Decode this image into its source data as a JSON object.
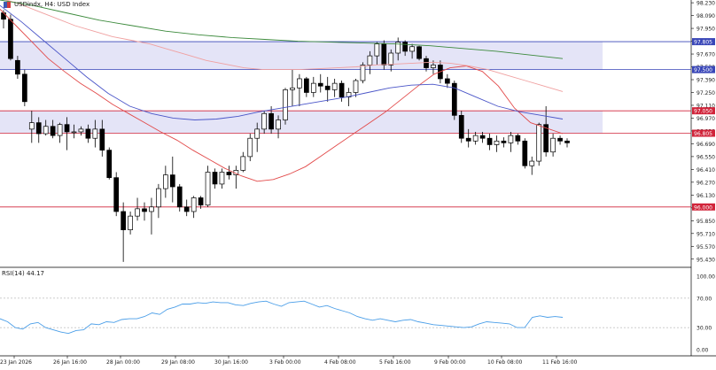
{
  "symbol": {
    "name": "USDindx, H4:  USD Index"
  },
  "price_axis": {
    "labels": [
      "98.230",
      "98.090",
      "97.950",
      "97.810",
      "97.670",
      "97.530",
      "97.390",
      "97.250",
      "97.110",
      "96.970",
      "96.830",
      "96.690",
      "96.550",
      "96.410",
      "96.270",
      "96.130",
      "95.990",
      "95.850",
      "95.710",
      "95.570",
      "95.430"
    ]
  },
  "levels": [
    {
      "value": "97.805",
      "color": "#3a47b8"
    },
    {
      "value": "97.500",
      "color": "#3a47b8"
    },
    {
      "value": "97.050",
      "color": "#d1243a"
    },
    {
      "value": "96.805",
      "color": "#d1243a"
    },
    {
      "value": "96.000",
      "color": "#d1243a"
    }
  ],
  "zones": [
    {
      "from": 97.5,
      "to": 97.805,
      "color": "#e4e4f7"
    },
    {
      "from": 96.805,
      "to": 97.05,
      "color": "#e4e4f7"
    }
  ],
  "time_axis": {
    "labels": [
      "23 Jan 2026",
      "26 Jan 16:00",
      "28 Jan 00:00",
      "29 Jan 08:00",
      "30 Jan 16:00",
      "3 Feb 00:00",
      "4 Feb 08:00",
      "5 Feb 16:00",
      "9 Feb 00:00",
      "10 Feb 08:00",
      "11 Feb 16:00"
    ]
  },
  "rsi": {
    "label": "RSI(14) 44.17",
    "axis_labels": [
      "100.00",
      "70.00",
      "30.00",
      "0.00"
    ],
    "color": "#4a9ee8"
  },
  "chart_data": {
    "type": "candlestick",
    "timeframe": "H4",
    "ylim": [
      95.36,
      98.26
    ],
    "series": [
      {
        "kind": "candles",
        "values": [
          [
            98.12,
            98.15,
            97.95,
            98.05
          ],
          [
            98.05,
            98.1,
            97.6,
            97.62
          ],
          [
            97.6,
            97.65,
            97.4,
            97.45
          ],
          [
            97.45,
            97.5,
            97.1,
            97.15
          ],
          [
            96.85,
            97.05,
            96.7,
            96.92
          ],
          [
            96.92,
            96.98,
            96.7,
            96.8
          ],
          [
            96.8,
            96.95,
            96.78,
            96.88
          ],
          [
            96.88,
            96.95,
            96.75,
            96.78
          ],
          [
            96.78,
            96.92,
            96.7,
            96.9
          ],
          [
            96.9,
            96.98,
            96.62,
            96.82
          ],
          [
            96.82,
            96.9,
            96.75,
            96.82
          ],
          [
            96.82,
            96.88,
            96.78,
            96.85
          ],
          [
            96.85,
            96.9,
            96.7,
            96.75
          ],
          [
            96.75,
            96.95,
            96.65,
            96.85
          ],
          [
            96.85,
            96.95,
            96.55,
            96.62
          ],
          [
            96.62,
            96.65,
            96.3,
            96.32
          ],
          [
            96.32,
            96.38,
            95.9,
            95.95
          ],
          [
            95.95,
            96.05,
            95.4,
            95.75
          ],
          [
            95.75,
            95.95,
            95.7,
            95.9
          ],
          [
            95.9,
            96.1,
            95.85,
            95.98
          ],
          [
            95.98,
            96.05,
            95.85,
            95.95
          ],
          [
            95.95,
            96.1,
            95.7,
            96.0
          ],
          [
            96.0,
            96.25,
            95.88,
            96.2
          ],
          [
            96.2,
            96.45,
            96.1,
            96.35
          ],
          [
            96.35,
            96.55,
            96.05,
            96.22
          ],
          [
            96.22,
            96.25,
            95.95,
            96.0
          ],
          [
            96.0,
            96.08,
            95.9,
            95.95
          ],
          [
            95.95,
            96.12,
            95.88,
            96.1
          ],
          [
            96.1,
            96.12,
            95.98,
            96.02
          ],
          [
            96.02,
            96.45,
            96.0,
            96.38
          ],
          [
            96.38,
            96.42,
            96.2,
            96.25
          ],
          [
            96.25,
            96.42,
            96.2,
            96.38
          ],
          [
            96.38,
            96.45,
            96.3,
            96.35
          ],
          [
            96.35,
            96.45,
            96.2,
            96.4
          ],
          [
            96.4,
            96.6,
            96.38,
            96.55
          ],
          [
            96.55,
            96.8,
            96.5,
            96.75
          ],
          [
            96.75,
            96.92,
            96.6,
            96.85
          ],
          [
            96.85,
            97.05,
            96.8,
            97.02
          ],
          [
            97.02,
            97.1,
            96.8,
            96.85
          ],
          [
            96.85,
            97.0,
            96.75,
            96.95
          ],
          [
            96.95,
            97.3,
            96.9,
            97.28
          ],
          [
            97.28,
            97.5,
            97.1,
            97.3
          ],
          [
            97.3,
            97.45,
            97.1,
            97.4
          ],
          [
            97.4,
            97.42,
            97.2,
            97.25
          ],
          [
            97.25,
            97.42,
            97.2,
            97.35
          ],
          [
            97.35,
            97.45,
            97.25,
            97.32
          ],
          [
            97.32,
            97.42,
            97.15,
            97.28
          ],
          [
            97.28,
            97.4,
            97.2,
            97.35
          ],
          [
            97.35,
            97.38,
            97.15,
            97.2
          ],
          [
            97.2,
            97.3,
            97.1,
            97.25
          ],
          [
            97.25,
            97.4,
            97.2,
            97.38
          ],
          [
            97.38,
            97.58,
            97.35,
            97.55
          ],
          [
            97.55,
            97.7,
            97.45,
            97.65
          ],
          [
            97.65,
            97.8,
            97.55,
            97.78
          ],
          [
            97.78,
            97.82,
            97.5,
            97.55
          ],
          [
            97.55,
            97.72,
            97.48,
            97.68
          ],
          [
            97.68,
            97.85,
            97.6,
            97.8
          ],
          [
            97.8,
            97.82,
            97.65,
            97.7
          ],
          [
            97.7,
            97.78,
            97.62,
            97.75
          ],
          [
            97.75,
            97.76,
            97.6,
            97.62
          ],
          [
            97.62,
            97.65,
            97.48,
            97.52
          ],
          [
            97.52,
            97.6,
            97.45,
            97.55
          ],
          [
            97.55,
            97.6,
            97.35,
            97.4
          ],
          [
            97.4,
            97.45,
            97.3,
            97.35
          ],
          [
            97.35,
            97.38,
            96.95,
            97.0
          ],
          [
            97.0,
            97.05,
            96.7,
            96.75
          ],
          [
            96.75,
            96.85,
            96.65,
            96.72
          ],
          [
            96.72,
            96.82,
            96.68,
            96.78
          ],
          [
            96.78,
            96.82,
            96.7,
            96.75
          ],
          [
            96.75,
            96.8,
            96.62,
            96.68
          ],
          [
            96.68,
            96.78,
            96.6,
            96.72
          ],
          [
            96.72,
            96.76,
            96.65,
            96.7
          ],
          [
            96.7,
            96.82,
            96.6,
            96.78
          ],
          [
            96.78,
            96.8,
            96.68,
            96.72
          ],
          [
            96.72,
            96.75,
            96.42,
            96.45
          ],
          [
            96.45,
            96.55,
            96.35,
            96.5
          ],
          [
            96.5,
            96.92,
            96.45,
            96.9
          ],
          [
            96.9,
            97.1,
            96.55,
            96.6
          ],
          [
            96.6,
            96.8,
            96.55,
            96.75
          ],
          [
            96.75,
            96.78,
            96.68,
            96.72
          ],
          [
            96.72,
            96.75,
            96.65,
            96.7
          ]
        ]
      },
      {
        "name": "",
        "kind": "ma",
        "color": "#e24a4a",
        "values": [
          98.16,
          97.98,
          97.8,
          97.62,
          97.48,
          97.35,
          97.24,
          97.12,
          97.02,
          96.92,
          96.82,
          96.73,
          96.62,
          96.52,
          96.42,
          96.34,
          96.28,
          96.3,
          96.36,
          96.44,
          96.56,
          96.68,
          96.8,
          96.92,
          97.04,
          97.18,
          97.32,
          97.45,
          97.52,
          97.54,
          97.48,
          97.32,
          97.08,
          96.92,
          96.86,
          96.8
        ]
      },
      {
        "name": "",
        "kind": "ma",
        "color": "#f0a0a0",
        "values": [
          98.28,
          98.22,
          98.14,
          98.06,
          97.98,
          97.92,
          97.86,
          97.82,
          97.78,
          97.72,
          97.66,
          97.6,
          97.56,
          97.52,
          97.5,
          97.5,
          97.5,
          97.51,
          97.52,
          97.53,
          97.55,
          97.56,
          97.57,
          97.58,
          97.57,
          97.54,
          97.5,
          97.44,
          97.38,
          97.32,
          97.26
        ]
      },
      {
        "name": "",
        "kind": "ma",
        "color": "#4a55c8",
        "values": [
          98.2,
          98.02,
          97.82,
          97.62,
          97.42,
          97.24,
          97.1,
          97.02,
          96.97,
          96.95,
          96.96,
          96.99,
          97.04,
          97.08,
          97.12,
          97.16,
          97.2,
          97.25,
          97.3,
          97.33,
          97.34,
          97.3,
          97.2,
          97.1,
          97.04,
          97.0,
          96.96
        ]
      },
      {
        "name": "",
        "kind": "ma",
        "color": "#3c8a3c",
        "values": [
          98.26,
          98.2,
          98.12,
          98.04,
          97.98,
          97.92,
          97.88,
          97.85,
          97.83,
          97.81,
          97.8,
          97.79,
          97.78,
          97.76,
          97.73,
          97.7,
          97.66,
          97.62
        ]
      },
      {
        "name": "RSI(14)",
        "kind": "rsi",
        "ylim": [
          0,
          100
        ],
        "values": [
          42,
          38,
          30,
          28,
          35,
          37,
          30,
          27,
          24,
          22,
          26,
          27,
          35,
          34,
          38,
          37,
          41,
          42,
          42,
          45,
          50,
          48,
          55,
          58,
          62,
          62,
          64,
          63,
          65,
          64,
          64,
          61,
          60,
          63,
          65,
          66,
          62,
          59,
          64,
          65,
          66,
          62,
          58,
          60,
          56,
          53,
          50,
          45,
          42,
          40,
          42,
          40,
          38,
          40,
          41,
          38,
          36,
          34,
          33,
          32,
          31,
          30,
          31,
          35,
          38,
          37,
          36,
          35,
          30,
          30,
          44,
          46,
          44,
          45,
          44
        ]
      }
    ]
  }
}
